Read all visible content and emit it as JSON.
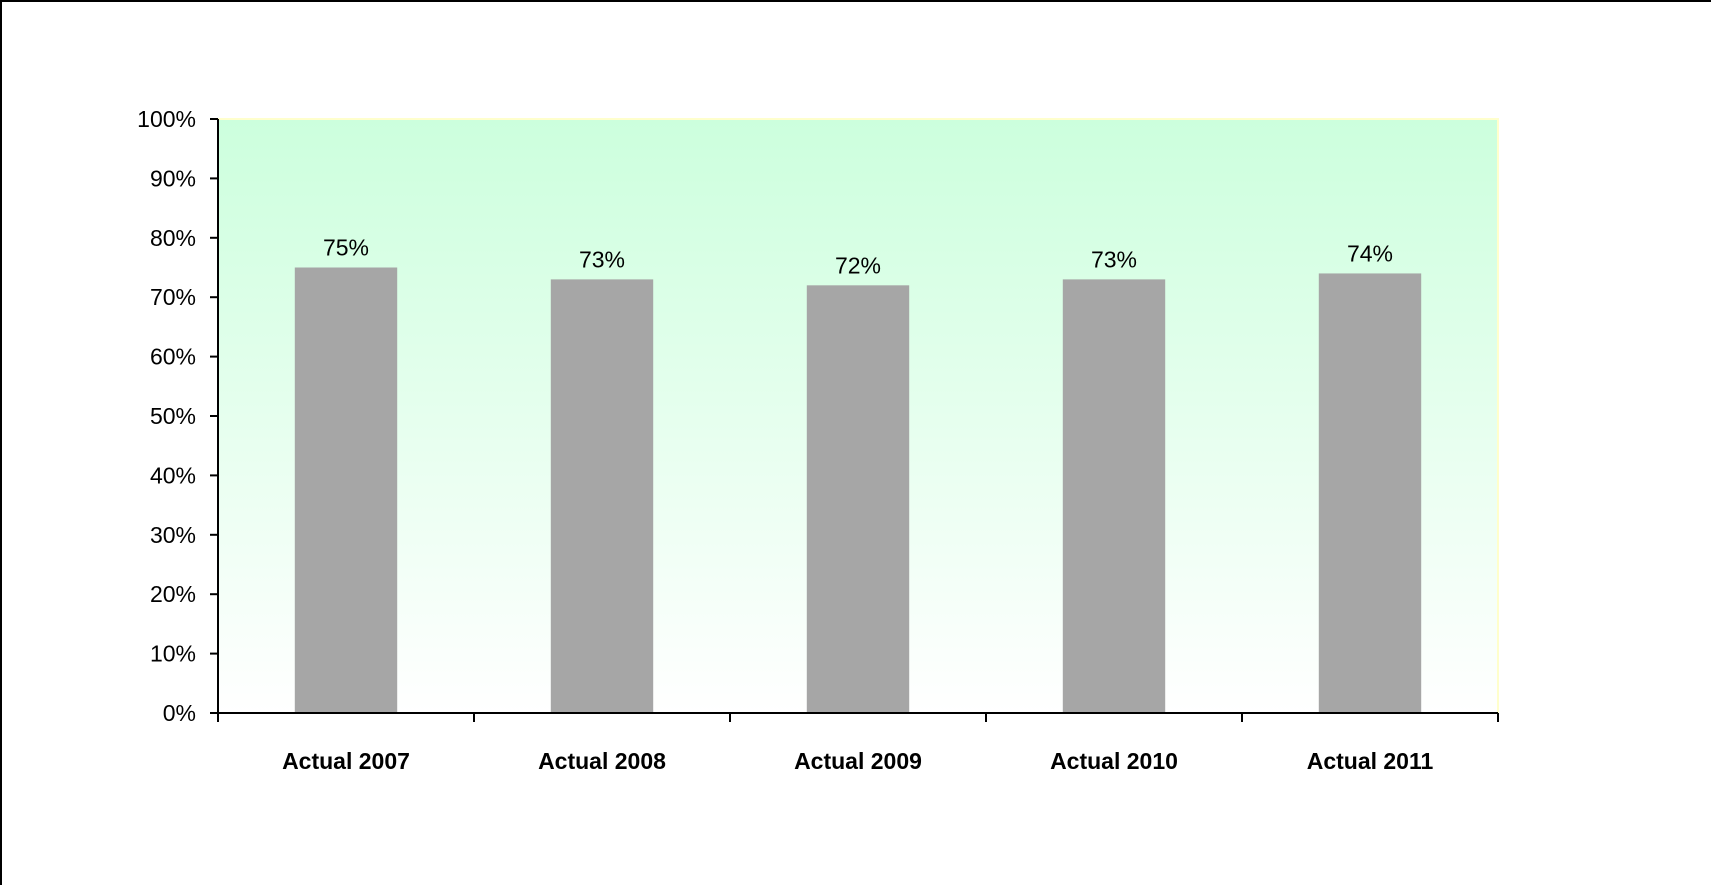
{
  "chart_data": {
    "type": "bar",
    "title": "",
    "xlabel": "",
    "ylabel": "",
    "categories": [
      "Actual 2007",
      "Actual 2008",
      "Actual 2009",
      "Actual 2010",
      "Actual 2011"
    ],
    "series": [
      {
        "values": [
          75,
          73,
          72,
          73,
          74
        ],
        "color": "#a6a6a6"
      }
    ],
    "data_labels": [
      "75%",
      "73%",
      "72%",
      "73%",
      "74%"
    ],
    "ylim": [
      0,
      100
    ],
    "y_ticks": [
      0,
      10,
      20,
      30,
      40,
      50,
      60,
      70,
      80,
      90,
      100
    ],
    "y_tick_labels": [
      "0%",
      "10%",
      "20%",
      "30%",
      "40%",
      "50%",
      "60%",
      "70%",
      "80%",
      "90%",
      "100%"
    ],
    "grid": false,
    "legend": "none",
    "plot_background": {
      "top_color": "#ccffdd",
      "bottom_color": "#ffffff",
      "border_color": "#ffffcc"
    },
    "axis_color": "#000000"
  }
}
